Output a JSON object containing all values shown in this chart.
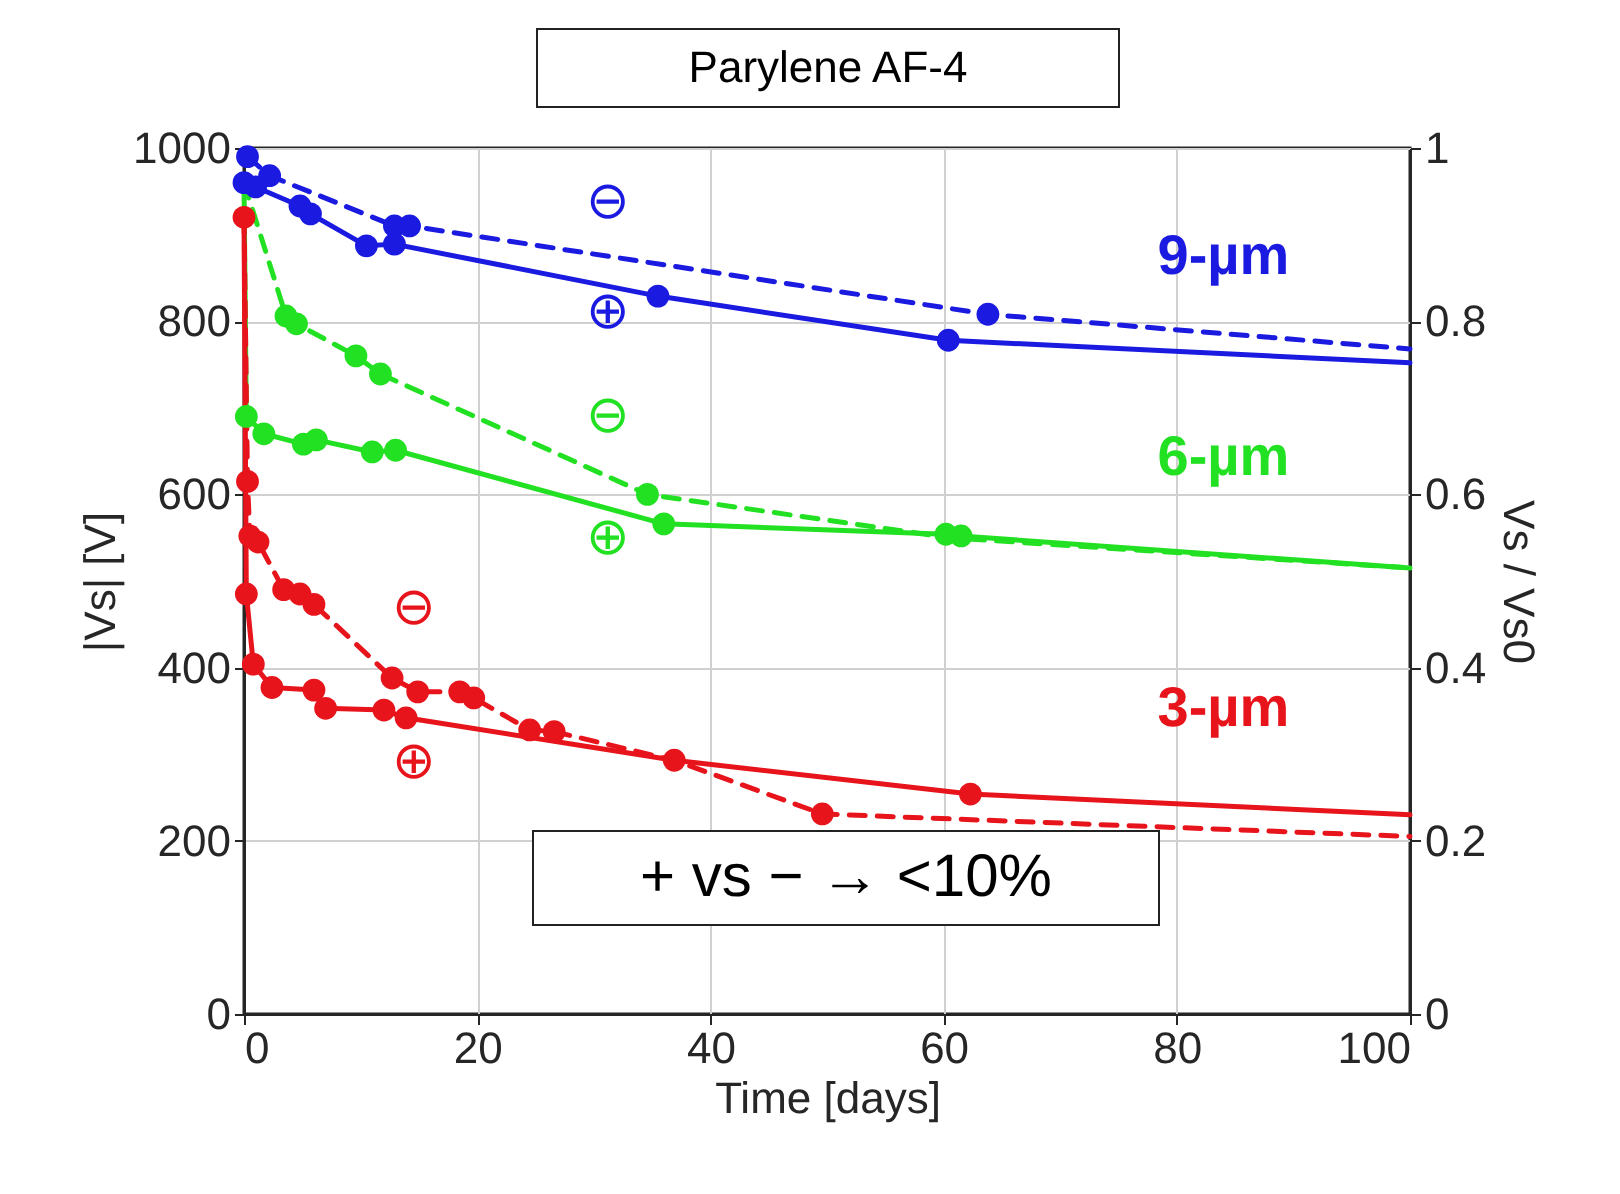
{
  "chart_data": {
    "type": "scatter",
    "title": "Parylene AF-4",
    "xlabel": "Time [days]",
    "ylabel": "|Vs| [V]",
    "y2label": "Vs / Vs0",
    "xlim": [
      0,
      100
    ],
    "xticks": [
      0,
      20,
      40,
      60,
      80,
      100
    ],
    "ylim": [
      0,
      1000
    ],
    "yticks": [
      0,
      200,
      400,
      600,
      800,
      1000
    ],
    "y2lim": [
      0,
      1
    ],
    "y2ticks": [
      0,
      0.2,
      0.4,
      0.6,
      0.8,
      1
    ],
    "grid": true,
    "marker": "circle",
    "series": [
      {
        "type": "line",
        "marker": "none",
        "line_style": "solid",
        "name": "9-µm",
        "color": "#1a1ae0",
        "x": [
          0,
          1,
          4.8,
          5.7,
          10.5,
          12.9,
          35.5,
          60.4,
          100
        ],
        "values": [
          960,
          955,
          933,
          924,
          887,
          889,
          829,
          778,
          752
        ]
      },
      {
        "type": "line",
        "marker": "none",
        "line_style": "dashed",
        "color": "#1a1ae0",
        "x": [
          0.3,
          2.2,
          12.9,
          14.2,
          63.8,
          100
        ],
        "values": [
          990,
          968,
          910,
          910,
          808,
          768
        ]
      },
      {
        "type": "line",
        "marker": "none",
        "line_style": "solid",
        "name": "6-µm",
        "color": "#22e022",
        "x": [
          0,
          0.2,
          1.7,
          5.1,
          6.2,
          11,
          13,
          36,
          60.2,
          61.5,
          100
        ],
        "values": [
          960,
          690,
          670,
          658,
          663,
          649,
          651,
          566,
          554,
          552,
          515
        ]
      },
      {
        "type": "line",
        "marker": "none",
        "line_style": "dashed",
        "color": "#22e022",
        "x": [
          0,
          3.6,
          4.5,
          9.6,
          11.7,
          34.6,
          60.5,
          100
        ],
        "values": [
          960,
          806,
          797,
          760,
          739,
          600,
          550,
          515
        ]
      },
      {
        "type": "line",
        "marker": "none",
        "line_style": "solid",
        "name": "3-µm",
        "color": "#e8141b",
        "x": [
          0,
          0.2,
          0.8,
          2.4,
          6,
          7,
          12,
          13.9,
          36.9,
          62.3,
          100
        ],
        "values": [
          920,
          485,
          404,
          377,
          374,
          353,
          351,
          342,
          293,
          254,
          230
        ]
      },
      {
        "type": "line",
        "marker": "none",
        "line_style": "dashed",
        "color": "#e8141b",
        "x": [
          0,
          0.3,
          0.5,
          1.2,
          3.4,
          4.8,
          6,
          12.7,
          14.9,
          18.5,
          19.7,
          24.5,
          26.6,
          36.9,
          49.6,
          100
        ],
        "values": [
          920,
          615,
          552,
          545,
          490,
          485,
          473,
          388,
          372,
          372,
          365,
          328,
          326,
          293,
          231,
          205
        ]
      },
      {
        "color": "#1a1ae0",
        "x": [
          0,
          1,
          4.8,
          5.7,
          10.5,
          12.9,
          35.5,
          60.4
        ],
        "values": [
          960,
          955,
          933,
          924,
          887,
          889,
          829,
          778
        ]
      },
      {
        "color": "#1a1ae0",
        "x": [
          0.3,
          2.2,
          12.9,
          14.2,
          63.8
        ],
        "values": [
          990,
          968,
          910,
          910,
          808
        ]
      },
      {
        "color": "#22e022",
        "x": [
          0.2,
          1.7,
          5.1,
          6.2,
          11,
          13,
          36,
          60.2,
          61.5
        ],
        "values": [
          690,
          670,
          658,
          663,
          649,
          651,
          566,
          554,
          552
        ]
      },
      {
        "color": "#22e022",
        "x": [
          3.6,
          4.5,
          9.6,
          11.7,
          34.6
        ],
        "values": [
          806,
          797,
          760,
          739,
          600
        ]
      },
      {
        "color": "#e8141b",
        "x": [
          0.2,
          0.8,
          2.4,
          6,
          7,
          12,
          13.9,
          36.9,
          62.3
        ],
        "values": [
          485,
          404,
          377,
          374,
          353,
          351,
          342,
          293,
          254
        ]
      },
      {
        "color": "#e8141b",
        "x": [
          0,
          0.3,
          0.5,
          1.2,
          3.4,
          4.8,
          6,
          12.7,
          14.9,
          18.5,
          19.7,
          24.5,
          26.6,
          49.6
        ],
        "values": [
          920,
          615,
          552,
          545,
          490,
          485,
          473,
          388,
          372,
          372,
          365,
          328,
          326,
          231
        ]
      }
    ],
    "annotations": [
      "⊖",
      "⊕",
      "⊖",
      "⊕",
      "⊖",
      "⊕",
      "+ vs − → <10%"
    ]
  }
}
